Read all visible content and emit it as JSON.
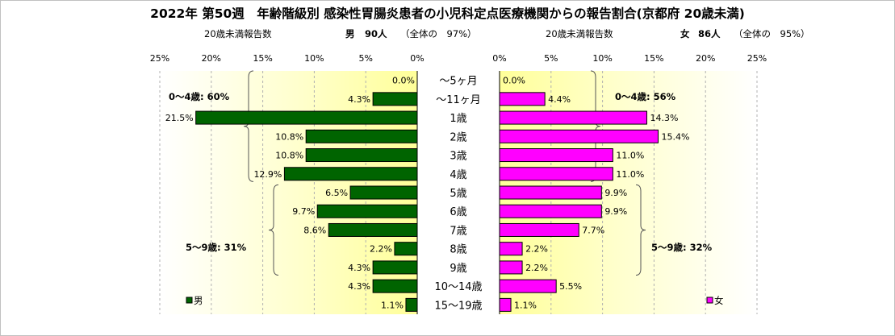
{
  "title": "2022年 第50週　年齢階級別 感染性胃腸炎患者の小児科定点医療機関からの報告割合(京都府 20歳未満)",
  "left_header": {
    "label": "20歳未満報告数",
    "sex": "男",
    "count": "90人",
    "share": "（全体の　97%）"
  },
  "right_header": {
    "label": "20歳未満報告数",
    "sex": "女",
    "count": "86人",
    "share": "（全体の　95%）"
  },
  "chart_data": {
    "type": "bar",
    "orientation": "horizontal-butterfly",
    "categories": [
      "～5ヶ月",
      "～11ヶ月",
      "1歳",
      "2歳",
      "3歳",
      "4歳",
      "5歳",
      "6歳",
      "7歳",
      "8歳",
      "9歳",
      "10～14歳",
      "15～19歳"
    ],
    "x_ticks": [
      "0%",
      "5%",
      "10%",
      "15%",
      "20%",
      "25%"
    ],
    "xlim": [
      0,
      25
    ],
    "series": [
      {
        "name": "男",
        "color": "#006400",
        "values": [
          0.0,
          4.3,
          21.5,
          10.8,
          10.8,
          12.9,
          6.5,
          9.7,
          8.6,
          2.2,
          4.3,
          4.3,
          1.1
        ],
        "labels": [
          "0.0%",
          "4.3%",
          "21.5%",
          "10.8%",
          "10.8%",
          "12.9%",
          "6.5%",
          "9.7%",
          "8.6%",
          "2.2%",
          "4.3%",
          "4.3%",
          "1.1%"
        ]
      },
      {
        "name": "女",
        "color": "#ff00ff",
        "values": [
          0.0,
          4.4,
          14.3,
          15.4,
          11.0,
          11.0,
          9.9,
          9.9,
          7.7,
          2.2,
          2.2,
          5.5,
          1.1
        ],
        "labels": [
          "0.0%",
          "4.4%",
          "14.3%",
          "15.4%",
          "11.0%",
          "11.0%",
          "9.9%",
          "9.9%",
          "7.7%",
          "2.2%",
          "2.2%",
          "5.5%",
          "1.1%"
        ]
      }
    ],
    "annotations": {
      "male": [
        "0～4歳: 60%",
        "5～9歳: 31%"
      ],
      "female": [
        "0～4歳: 56%",
        "5～9歳: 32%"
      ]
    },
    "legend_placement": "bottom-left / bottom-right",
    "grid": true
  }
}
